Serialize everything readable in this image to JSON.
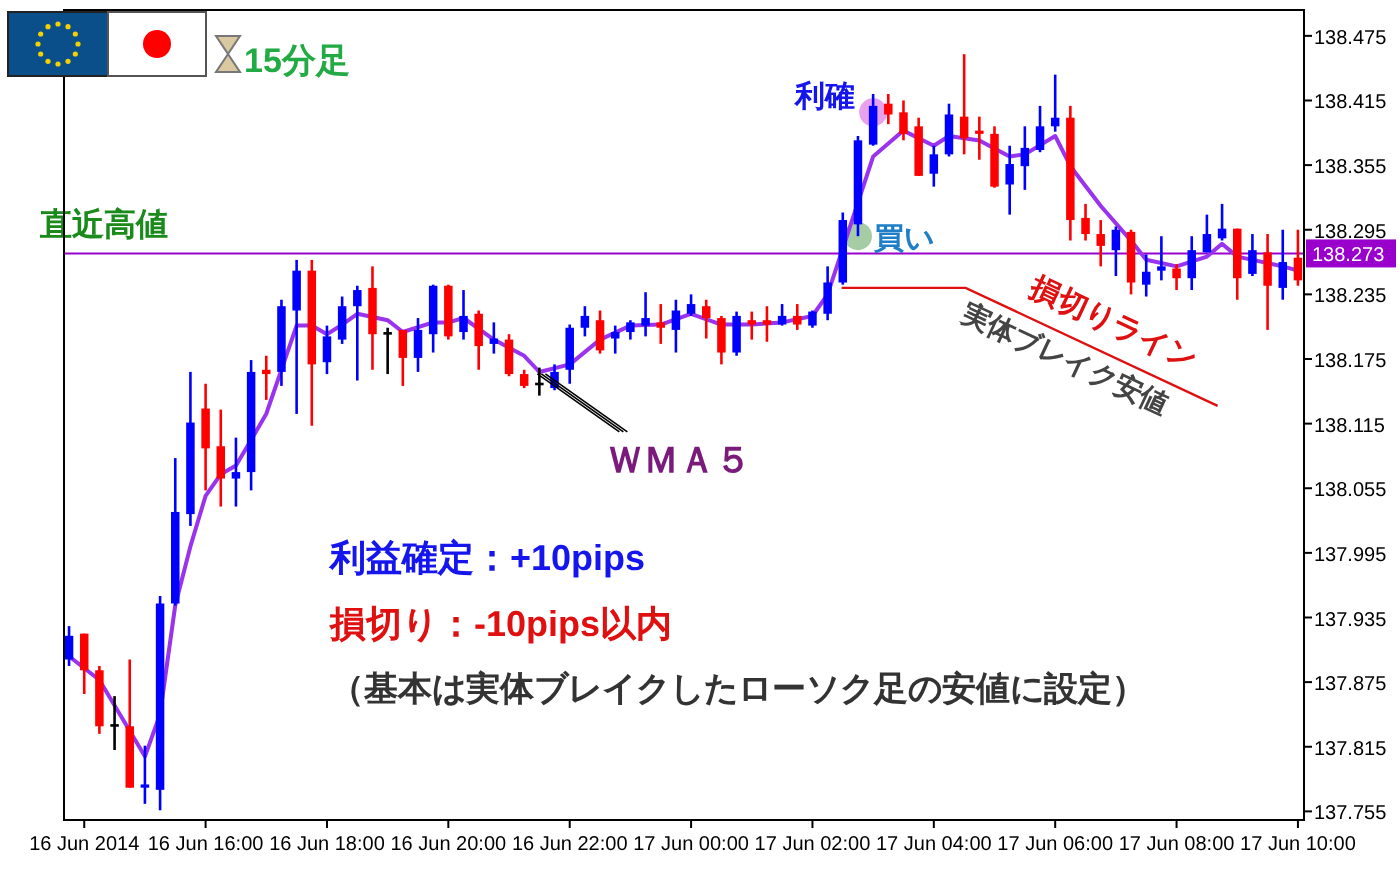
{
  "chart_data": {
    "type": "candlestick",
    "title": "15分足",
    "x": [
      "2014-06-16T13:45",
      "2014-06-16T14:00",
      "2014-06-16T14:15",
      "2014-06-16T14:30",
      "2014-06-16T14:45",
      "2014-06-16T15:00",
      "2014-06-16T15:15",
      "2014-06-16T15:30",
      "2014-06-16T15:45",
      "2014-06-16T16:00",
      "2014-06-16T16:15",
      "2014-06-16T16:30",
      "2014-06-16T16:45",
      "2014-06-16T17:00",
      "2014-06-16T17:15",
      "2014-06-16T17:30",
      "2014-06-16T17:45",
      "2014-06-16T18:00",
      "2014-06-16T18:15",
      "2014-06-16T18:30",
      "2014-06-16T18:45",
      "2014-06-16T19:00",
      "2014-06-16T19:15",
      "2014-06-16T19:30",
      "2014-06-16T19:45",
      "2014-06-16T20:00",
      "2014-06-16T20:15",
      "2014-06-16T20:30",
      "2014-06-16T20:45",
      "2014-06-16T21:00",
      "2014-06-16T21:15",
      "2014-06-16T21:30",
      "2014-06-16T21:45",
      "2014-06-16T22:00",
      "2014-06-16T22:15",
      "2014-06-16T22:30",
      "2014-06-16T22:45",
      "2014-06-16T23:00",
      "2014-06-16T23:15",
      "2014-06-16T23:30",
      "2014-06-16T23:45",
      "2014-06-17T00:00",
      "2014-06-17T00:15",
      "2014-06-17T00:30",
      "2014-06-17T00:45",
      "2014-06-17T01:00",
      "2014-06-17T01:15",
      "2014-06-17T01:30",
      "2014-06-17T01:45",
      "2014-06-17T02:00",
      "2014-06-17T02:15",
      "2014-06-17T02:30",
      "2014-06-17T02:45",
      "2014-06-17T03:00",
      "2014-06-17T03:15",
      "2014-06-17T03:30",
      "2014-06-17T03:45",
      "2014-06-17T04:00",
      "2014-06-17T04:15",
      "2014-06-17T04:30",
      "2014-06-17T04:45",
      "2014-06-17T05:00",
      "2014-06-17T05:15",
      "2014-06-17T05:30",
      "2014-06-17T05:45",
      "2014-06-17T06:00",
      "2014-06-17T06:15",
      "2014-06-17T06:30",
      "2014-06-17T06:45",
      "2014-06-17T07:00",
      "2014-06-17T07:15",
      "2014-06-17T07:30",
      "2014-06-17T07:45",
      "2014-06-17T08:00",
      "2014-06-17T08:15",
      "2014-06-17T08:30",
      "2014-06-17T08:45",
      "2014-06-17T09:00",
      "2014-06-17T09:15",
      "2014-06-17T09:30",
      "2014-06-17T09:45",
      "2014-06-17T10:00"
    ],
    "ohlc": [
      [
        137.896,
        137.927,
        137.89,
        137.918
      ],
      [
        137.92,
        137.92,
        137.864,
        137.886
      ],
      [
        137.886,
        137.89,
        137.827,
        137.834
      ],
      [
        137.836,
        137.862,
        137.812,
        137.836
      ],
      [
        137.834,
        137.896,
        137.777,
        137.777
      ],
      [
        137.777,
        137.816,
        137.762,
        137.78
      ],
      [
        137.775,
        137.955,
        137.756,
        137.948
      ],
      [
        137.948,
        138.083,
        137.946,
        138.033
      ],
      [
        138.031,
        138.163,
        138.02,
        138.116
      ],
      [
        138.129,
        138.152,
        138.053,
        138.092
      ],
      [
        138.094,
        138.128,
        138.038,
        138.064
      ],
      [
        138.064,
        138.102,
        138.038,
        138.07
      ],
      [
        138.07,
        138.174,
        138.053,
        138.163
      ],
      [
        138.165,
        138.178,
        138.137,
        138.161
      ],
      [
        138.163,
        138.23,
        138.15,
        138.224
      ],
      [
        138.22,
        138.267,
        138.124,
        138.257
      ],
      [
        138.257,
        138.267,
        138.113,
        138.17
      ],
      [
        138.172,
        138.206,
        138.161,
        138.196
      ],
      [
        138.193,
        138.233,
        138.189,
        138.224
      ],
      [
        138.224,
        138.243,
        138.155,
        138.239
      ],
      [
        138.241,
        138.261,
        138.165,
        138.198
      ],
      [
        138.2,
        138.204,
        138.161,
        138.2
      ],
      [
        138.202,
        138.202,
        138.15,
        138.176
      ],
      [
        138.176,
        138.213,
        138.163,
        138.202
      ],
      [
        138.198,
        138.244,
        138.181,
        138.243
      ],
      [
        138.243,
        138.244,
        138.193,
        138.196
      ],
      [
        138.2,
        138.239,
        138.193,
        138.215
      ],
      [
        138.217,
        138.22,
        138.165,
        138.187
      ],
      [
        138.189,
        138.209,
        138.18,
        138.194
      ],
      [
        138.193,
        138.198,
        138.159,
        138.161
      ],
      [
        138.161,
        138.165,
        138.148,
        138.15
      ],
      [
        138.153,
        138.167,
        138.141,
        138.153
      ],
      [
        138.148,
        138.17,
        138.146,
        138.163
      ],
      [
        138.165,
        138.207,
        138.152,
        138.204
      ],
      [
        138.204,
        138.224,
        138.196,
        138.215
      ],
      [
        138.211,
        138.22,
        138.18,
        138.183
      ],
      [
        138.194,
        138.206,
        138.18,
        138.2
      ],
      [
        138.2,
        138.211,
        138.193,
        138.209
      ],
      [
        138.206,
        138.237,
        138.196,
        138.213
      ],
      [
        138.209,
        138.226,
        138.189,
        138.204
      ],
      [
        138.202,
        138.23,
        138.181,
        138.22
      ],
      [
        138.217,
        138.235,
        138.215,
        138.226
      ],
      [
        138.224,
        138.23,
        138.194,
        138.213
      ],
      [
        138.213,
        138.215,
        138.17,
        138.181
      ],
      [
        138.181,
        138.219,
        138.178,
        138.215
      ],
      [
        138.211,
        138.219,
        138.193,
        138.207
      ],
      [
        138.211,
        138.224,
        138.191,
        138.207
      ],
      [
        138.207,
        138.226,
        138.206,
        138.215
      ],
      [
        138.215,
        138.226,
        138.202,
        138.207
      ],
      [
        138.206,
        138.22,
        138.204,
        138.219
      ],
      [
        138.217,
        138.261,
        138.211,
        138.246
      ],
      [
        138.246,
        138.311,
        138.244,
        138.304
      ],
      [
        138.3,
        138.382,
        138.289,
        138.378
      ],
      [
        138.374,
        138.421,
        138.373,
        138.41
      ],
      [
        138.412,
        138.421,
        138.393,
        138.402
      ],
      [
        138.404,
        138.415,
        138.378,
        138.384
      ],
      [
        138.391,
        138.399,
        138.345,
        138.345
      ],
      [
        138.347,
        138.373,
        138.335,
        138.365
      ],
      [
        138.365,
        138.412,
        138.363,
        138.402
      ],
      [
        138.4,
        138.458,
        138.365,
        138.38
      ],
      [
        138.387,
        138.4,
        138.36,
        138.384
      ],
      [
        138.384,
        138.391,
        138.334,
        138.335
      ],
      [
        138.337,
        138.373,
        138.309,
        138.356
      ],
      [
        138.354,
        138.391,
        138.332,
        138.371
      ],
      [
        138.369,
        138.41,
        138.367,
        138.391
      ],
      [
        138.391,
        138.439,
        138.386,
        138.399
      ],
      [
        138.399,
        138.41,
        138.285,
        138.304
      ],
      [
        138.306,
        138.319,
        138.285,
        138.291
      ],
      [
        138.291,
        138.304,
        138.261,
        138.28
      ],
      [
        138.276,
        138.298,
        138.252,
        138.295
      ],
      [
        138.293,
        138.295,
        138.235,
        138.246
      ],
      [
        138.244,
        138.272,
        138.233,
        138.256
      ],
      [
        138.257,
        138.289,
        138.248,
        138.261
      ],
      [
        138.259,
        138.263,
        138.239,
        138.25
      ],
      [
        138.25,
        138.289,
        138.239,
        138.276
      ],
      [
        138.274,
        138.309,
        138.274,
        138.291
      ],
      [
        138.287,
        138.319,
        138.285,
        138.296
      ],
      [
        138.296,
        138.296,
        138.23,
        138.25
      ],
      [
        138.254,
        138.291,
        138.252,
        138.276
      ],
      [
        138.274,
        138.291,
        138.202,
        138.243
      ],
      [
        138.241,
        138.295,
        138.23,
        138.265
      ],
      [
        138.269,
        138.295,
        138.243,
        138.248
      ]
    ],
    "series": [
      {
        "type": "line",
        "name": "ＷＭＡ５",
        "color": "#9933ee",
        "x": [
          "2014-06-16T13:45",
          "2014-06-16T14:15",
          "2014-06-16T15:00",
          "2014-06-16T15:15",
          "2014-06-16T15:30",
          "2014-06-16T15:45",
          "2014-06-16T16:00",
          "2014-06-16T16:15",
          "2014-06-16T16:30",
          "2014-06-16T16:45",
          "2014-06-16T17:00",
          "2014-06-16T17:15",
          "2014-06-16T17:30",
          "2014-06-16T17:45",
          "2014-06-16T18:00",
          "2014-06-16T18:15",
          "2014-06-16T18:30",
          "2014-06-16T19:00",
          "2014-06-16T19:15",
          "2014-06-16T19:45",
          "2014-06-16T20:00",
          "2014-06-16T20:15",
          "2014-06-16T20:45",
          "2014-06-16T21:15",
          "2014-06-16T21:30",
          "2014-06-16T22:00",
          "2014-06-16T22:30",
          "2014-06-16T23:00",
          "2014-06-16T23:30",
          "2014-06-17T00:00",
          "2014-06-17T00:30",
          "2014-06-17T01:00",
          "2014-06-17T01:30",
          "2014-06-17T02:00",
          "2014-06-17T02:15",
          "2014-06-17T03:00",
          "2014-06-17T03:30",
          "2014-06-17T04:00",
          "2014-06-17T04:15",
          "2014-06-17T04:45",
          "2014-06-17T05:15",
          "2014-06-17T05:30",
          "2014-06-17T06:00",
          "2014-06-17T06:15",
          "2014-06-17T06:45",
          "2014-06-17T07:15",
          "2014-06-17T07:30",
          "2014-06-17T08:00",
          "2014-06-17T08:30",
          "2014-06-17T08:45",
          "2014-06-17T09:00",
          "2014-06-17T09:45",
          "2014-06-17T10:00"
        ],
        "values": [
          137.899,
          137.877,
          137.806,
          137.845,
          137.946,
          138.001,
          138.048,
          138.068,
          138.076,
          138.1,
          138.124,
          138.165,
          138.206,
          138.206,
          138.198,
          138.207,
          138.217,
          138.211,
          138.2,
          138.209,
          138.209,
          138.213,
          138.193,
          138.178,
          138.163,
          138.17,
          138.193,
          138.206,
          138.207,
          138.217,
          138.207,
          138.207,
          138.209,
          138.215,
          138.235,
          138.363,
          138.387,
          138.373,
          138.382,
          138.378,
          138.363,
          138.365,
          138.382,
          138.354,
          138.317,
          138.285,
          138.267,
          138.261,
          138.27,
          138.282,
          138.27,
          138.261,
          138.257
        ]
      }
    ],
    "xlim": [
      "2014-06-16T13:40",
      "2014-06-17T10:06"
    ],
    "ylim": [
      137.747,
      138.499
    ],
    "xticks": [
      {
        "value": "2014-06-16T14:00",
        "label": "16 Jun 2014"
      },
      {
        "value": "2014-06-16T16:00",
        "label": "16 Jun 16:00"
      },
      {
        "value": "2014-06-16T18:00",
        "label": "16 Jun 18:00"
      },
      {
        "value": "2014-06-16T20:00",
        "label": "16 Jun 20:00"
      },
      {
        "value": "2014-06-16T22:00",
        "label": "16 Jun 22:00"
      },
      {
        "value": "2014-06-17T00:00",
        "label": "17 Jun 00:00"
      },
      {
        "value": "2014-06-17T02:00",
        "label": "17 Jun 02:00"
      },
      {
        "value": "2014-06-17T04:00",
        "label": "17 Jun 04:00"
      },
      {
        "value": "2014-06-17T06:00",
        "label": "17 Jun 06:00"
      },
      {
        "value": "2014-06-17T08:00",
        "label": "17 Jun 08:00"
      },
      {
        "value": "2014-06-17T10:00",
        "label": "17 Jun 10:00"
      }
    ],
    "yticks": [
      137.755,
      137.815,
      137.875,
      137.935,
      137.995,
      138.055,
      138.115,
      138.175,
      138.235,
      {
        "value": 138.273,
        "label": "138.273"
      },
      138.295,
      138.355,
      138.415,
      138.475
    ],
    "ref_lines": [
      {
        "axis": "y",
        "value": 138.273,
        "label": "直近高値",
        "color": "#9900cc"
      }
    ],
    "annotations": [
      {
        "text": "利確",
        "x": "2014-06-17T03:00",
        "y": 138.404
      },
      {
        "text": "買い",
        "x": "2014-06-17T02:45",
        "y": 138.289
      },
      {
        "text": "損切りライン",
        "x": "2014-06-17T02:15",
        "y": 138.241
      },
      "実体ブレイク安値",
      "利益確定：+10pips",
      "損切り：-10pips以内",
      "（基本は実体ブレイクしたローソク足の安値に設定）"
    ]
  }
}
